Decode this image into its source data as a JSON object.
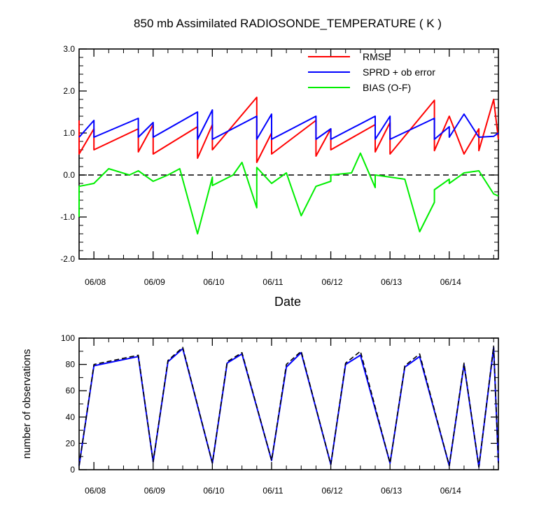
{
  "chart_data": [
    {
      "type": "line",
      "title": "850 mb Assimilated RADIOSONDE_TEMPERATURE ( K )",
      "xlabel": "Date",
      "ylabel": "",
      "xlim": [
        -0.25,
        6.83
      ],
      "ylim": [
        -2.0,
        3.0
      ],
      "yticks": [
        -2.0,
        -1.0,
        0.0,
        1.0,
        2.0,
        3.0
      ],
      "ytick_labels": [
        "-2.0",
        "-1.0",
        "0.0",
        "1.0",
        "2.0",
        "3.0"
      ],
      "xticks": [
        0,
        1,
        2,
        3,
        4,
        5,
        6
      ],
      "xtick_labels": [
        "06/08",
        "06/09",
        "06/10",
        "06/11",
        "06/12",
        "06/13",
        "06/14"
      ],
      "reference_line": {
        "y": 0,
        "style": "dashed",
        "color": "#000000"
      },
      "legend": {
        "position": "top-right",
        "entries": [
          "RMSE",
          "SPRD + ob error",
          "BIAS (O-F)"
        ]
      },
      "series": [
        {
          "name": "RMSE",
          "color": "#ff0000",
          "x": [
            -0.25,
            -0.25,
            0.0,
            0.0,
            0.75,
            0.75,
            1.0,
            1.0,
            1.75,
            1.75,
            2.0,
            2.0,
            2.75,
            2.75,
            3.0,
            3.0,
            3.75,
            3.75,
            4.0,
            4.0,
            4.75,
            4.75,
            5.0,
            5.0,
            5.75,
            5.75,
            6.0,
            6.25,
            6.5,
            6.5,
            6.75,
            6.83
          ],
          "y": [
            1.3,
            0.5,
            1.1,
            0.6,
            1.1,
            0.55,
            1.2,
            0.5,
            1.15,
            0.4,
            1.2,
            0.6,
            1.85,
            0.3,
            1.0,
            0.5,
            1.3,
            0.45,
            1.1,
            0.6,
            1.2,
            0.55,
            1.25,
            0.5,
            1.78,
            0.58,
            1.4,
            0.5,
            1.1,
            0.58,
            1.8,
            0.85
          ]
        },
        {
          "name": "SPRD + ob error",
          "color": "#0000ff",
          "x": [
            -0.25,
            0.0,
            0.0,
            0.75,
            0.75,
            1.0,
            1.0,
            1.75,
            1.75,
            2.0,
            2.0,
            2.75,
            2.75,
            3.0,
            3.0,
            3.75,
            3.75,
            4.0,
            4.0,
            4.75,
            4.75,
            5.0,
            5.0,
            5.75,
            5.75,
            6.0,
            6.0,
            6.25,
            6.5,
            6.75,
            6.83
          ],
          "y": [
            0.9,
            1.3,
            0.9,
            1.35,
            0.9,
            1.25,
            0.9,
            1.5,
            0.85,
            1.55,
            0.85,
            1.4,
            0.85,
            1.45,
            0.85,
            1.4,
            0.85,
            1.1,
            0.85,
            1.4,
            0.85,
            1.4,
            0.85,
            1.35,
            0.85,
            1.15,
            0.9,
            1.45,
            0.9,
            0.92,
            1.0
          ]
        },
        {
          "name": "BIAS (O-F)",
          "color": "#00ee00",
          "x": [
            -0.25,
            -0.25,
            0.0,
            0.25,
            0.6,
            0.75,
            1.0,
            1.25,
            1.45,
            1.75,
            2.0,
            2.0,
            2.35,
            2.5,
            2.75,
            2.75,
            3.0,
            3.25,
            3.5,
            3.75,
            4.0,
            4.0,
            4.35,
            4.5,
            4.75,
            4.75,
            5.0,
            5.25,
            5.5,
            5.75,
            5.75,
            6.0,
            6.0,
            6.25,
            6.5,
            6.75,
            6.83
          ],
          "y": [
            -1.0,
            -0.27,
            -0.2,
            0.15,
            0.0,
            0.1,
            -0.15,
            0.0,
            0.15,
            -1.4,
            -0.05,
            -0.25,
            0.0,
            0.3,
            -0.78,
            0.18,
            -0.2,
            0.05,
            -0.97,
            -0.27,
            -0.15,
            0.0,
            0.05,
            0.52,
            -0.3,
            0.0,
            -0.05,
            -0.1,
            -1.35,
            -0.65,
            -0.35,
            -0.1,
            -0.2,
            0.05,
            0.1,
            -0.45,
            -0.5
          ]
        }
      ]
    },
    {
      "type": "line",
      "title": "",
      "xlabel": "",
      "ylabel": "number of observations",
      "xlim": [
        -0.25,
        6.83
      ],
      "ylim": [
        0,
        100
      ],
      "yticks": [
        0,
        20,
        40,
        60,
        80,
        100
      ],
      "ytick_labels": [
        "0",
        "20",
        "40",
        "60",
        "80",
        "100"
      ],
      "xticks": [
        0,
        1,
        2,
        3,
        4,
        5,
        6
      ],
      "xtick_labels": [
        "06/08",
        "06/09",
        "06/10",
        "06/11",
        "06/12",
        "06/13",
        "06/14"
      ],
      "series": [
        {
          "name": "observations (solid)",
          "color": "#0000ff",
          "style": "solid",
          "x": [
            -0.25,
            0.0,
            0.75,
            1.0,
            1.25,
            1.5,
            2.0,
            2.25,
            2.5,
            3.0,
            3.25,
            3.5,
            4.0,
            4.25,
            4.5,
            5.0,
            5.25,
            5.5,
            6.0,
            6.25,
            6.5,
            6.75,
            6.83
          ],
          "y": [
            3,
            79,
            86,
            6,
            82,
            92,
            5,
            81,
            88,
            7,
            78,
            89,
            4,
            80,
            87,
            5,
            78,
            86,
            3,
            80,
            2,
            93,
            5
          ]
        },
        {
          "name": "observations (dashed)",
          "color": "#000000",
          "style": "dashed",
          "x": [
            -0.25,
            0.0,
            0.75,
            1.0,
            1.25,
            1.5,
            2.0,
            2.25,
            2.5,
            3.0,
            3.25,
            3.5,
            4.0,
            4.25,
            4.5,
            5.0,
            5.25,
            5.5,
            6.0,
            6.25,
            6.5,
            6.75,
            6.83
          ],
          "y": [
            3,
            80,
            87,
            6,
            83,
            93,
            5,
            82,
            89,
            7,
            80,
            90,
            4,
            81,
            90,
            5,
            79,
            88,
            3,
            81,
            2,
            94,
            5
          ]
        }
      ]
    }
  ]
}
